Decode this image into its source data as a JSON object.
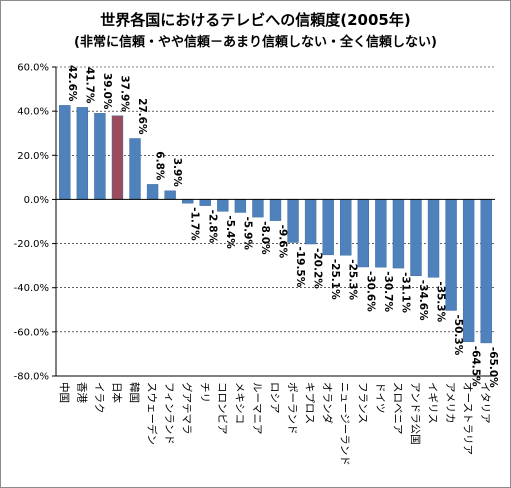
{
  "chart_data": {
    "type": "bar",
    "title": "世界各国におけるテレビへの信頼度(2005年)",
    "subtitle": "(非常に信頼・やや信頼－あまり信頼しない・全く信頼しない)",
    "categories": [
      "中国",
      "香港",
      "イラク",
      "日本",
      "韓国",
      "スウェーデン",
      "フィンランド",
      "グアテマラ",
      "チリ",
      "コロンビア",
      "メキシコ",
      "ルーマニア",
      "ロシア",
      "ポーランド",
      "キプロス",
      "オランダ",
      "ニュージーランド",
      "フランス",
      "ドイツ",
      "スロベニア",
      "アンドラ公国",
      "イギリス",
      "アメリカ",
      "オーストラリア",
      "イタリア"
    ],
    "values": [
      42.6,
      41.7,
      39.0,
      37.9,
      27.6,
      6.8,
      3.9,
      -1.7,
      -2.8,
      -5.4,
      -5.9,
      -8.0,
      -9.6,
      -19.5,
      -20.2,
      -25.1,
      -25.3,
      -30.6,
      -30.7,
      -31.1,
      -34.6,
      -35.3,
      -50.3,
      -64.5,
      -65.0
    ],
    "data_labels": [
      "42.6%",
      "41.7%",
      "39.0%",
      "37.9%",
      "27.6%",
      "6.8%",
      "3.9%",
      "-1.7%",
      "-2.8%",
      "-5.4%",
      "-5.9%",
      "-8.0%",
      "-9.6%",
      "-19.5%",
      "-20.2%",
      "-25.1%",
      "-25.3%",
      "-30.6%",
      "-30.7%",
      "-31.1%",
      "-34.6%",
      "-35.3%",
      "-50.3%",
      "-64.5%",
      "-65.0%"
    ],
    "highlight_index": 3,
    "ylim": [
      -80,
      60
    ],
    "yticks": [
      60,
      40,
      20,
      0,
      -20,
      -40,
      -60,
      -80
    ],
    "ytick_labels": [
      "60.0%",
      "40.0%",
      "20.0%",
      "0.0%",
      "-20.0%",
      "-40.0%",
      "-60.0%",
      "-80.0%"
    ],
    "grid": true,
    "grid_style": "dashed",
    "legend": "none",
    "colors": {
      "bar": "#4f81bd",
      "highlight": "#9b4b5e",
      "bar_edge": "#3f6d9e",
      "grid": "#000000"
    }
  }
}
